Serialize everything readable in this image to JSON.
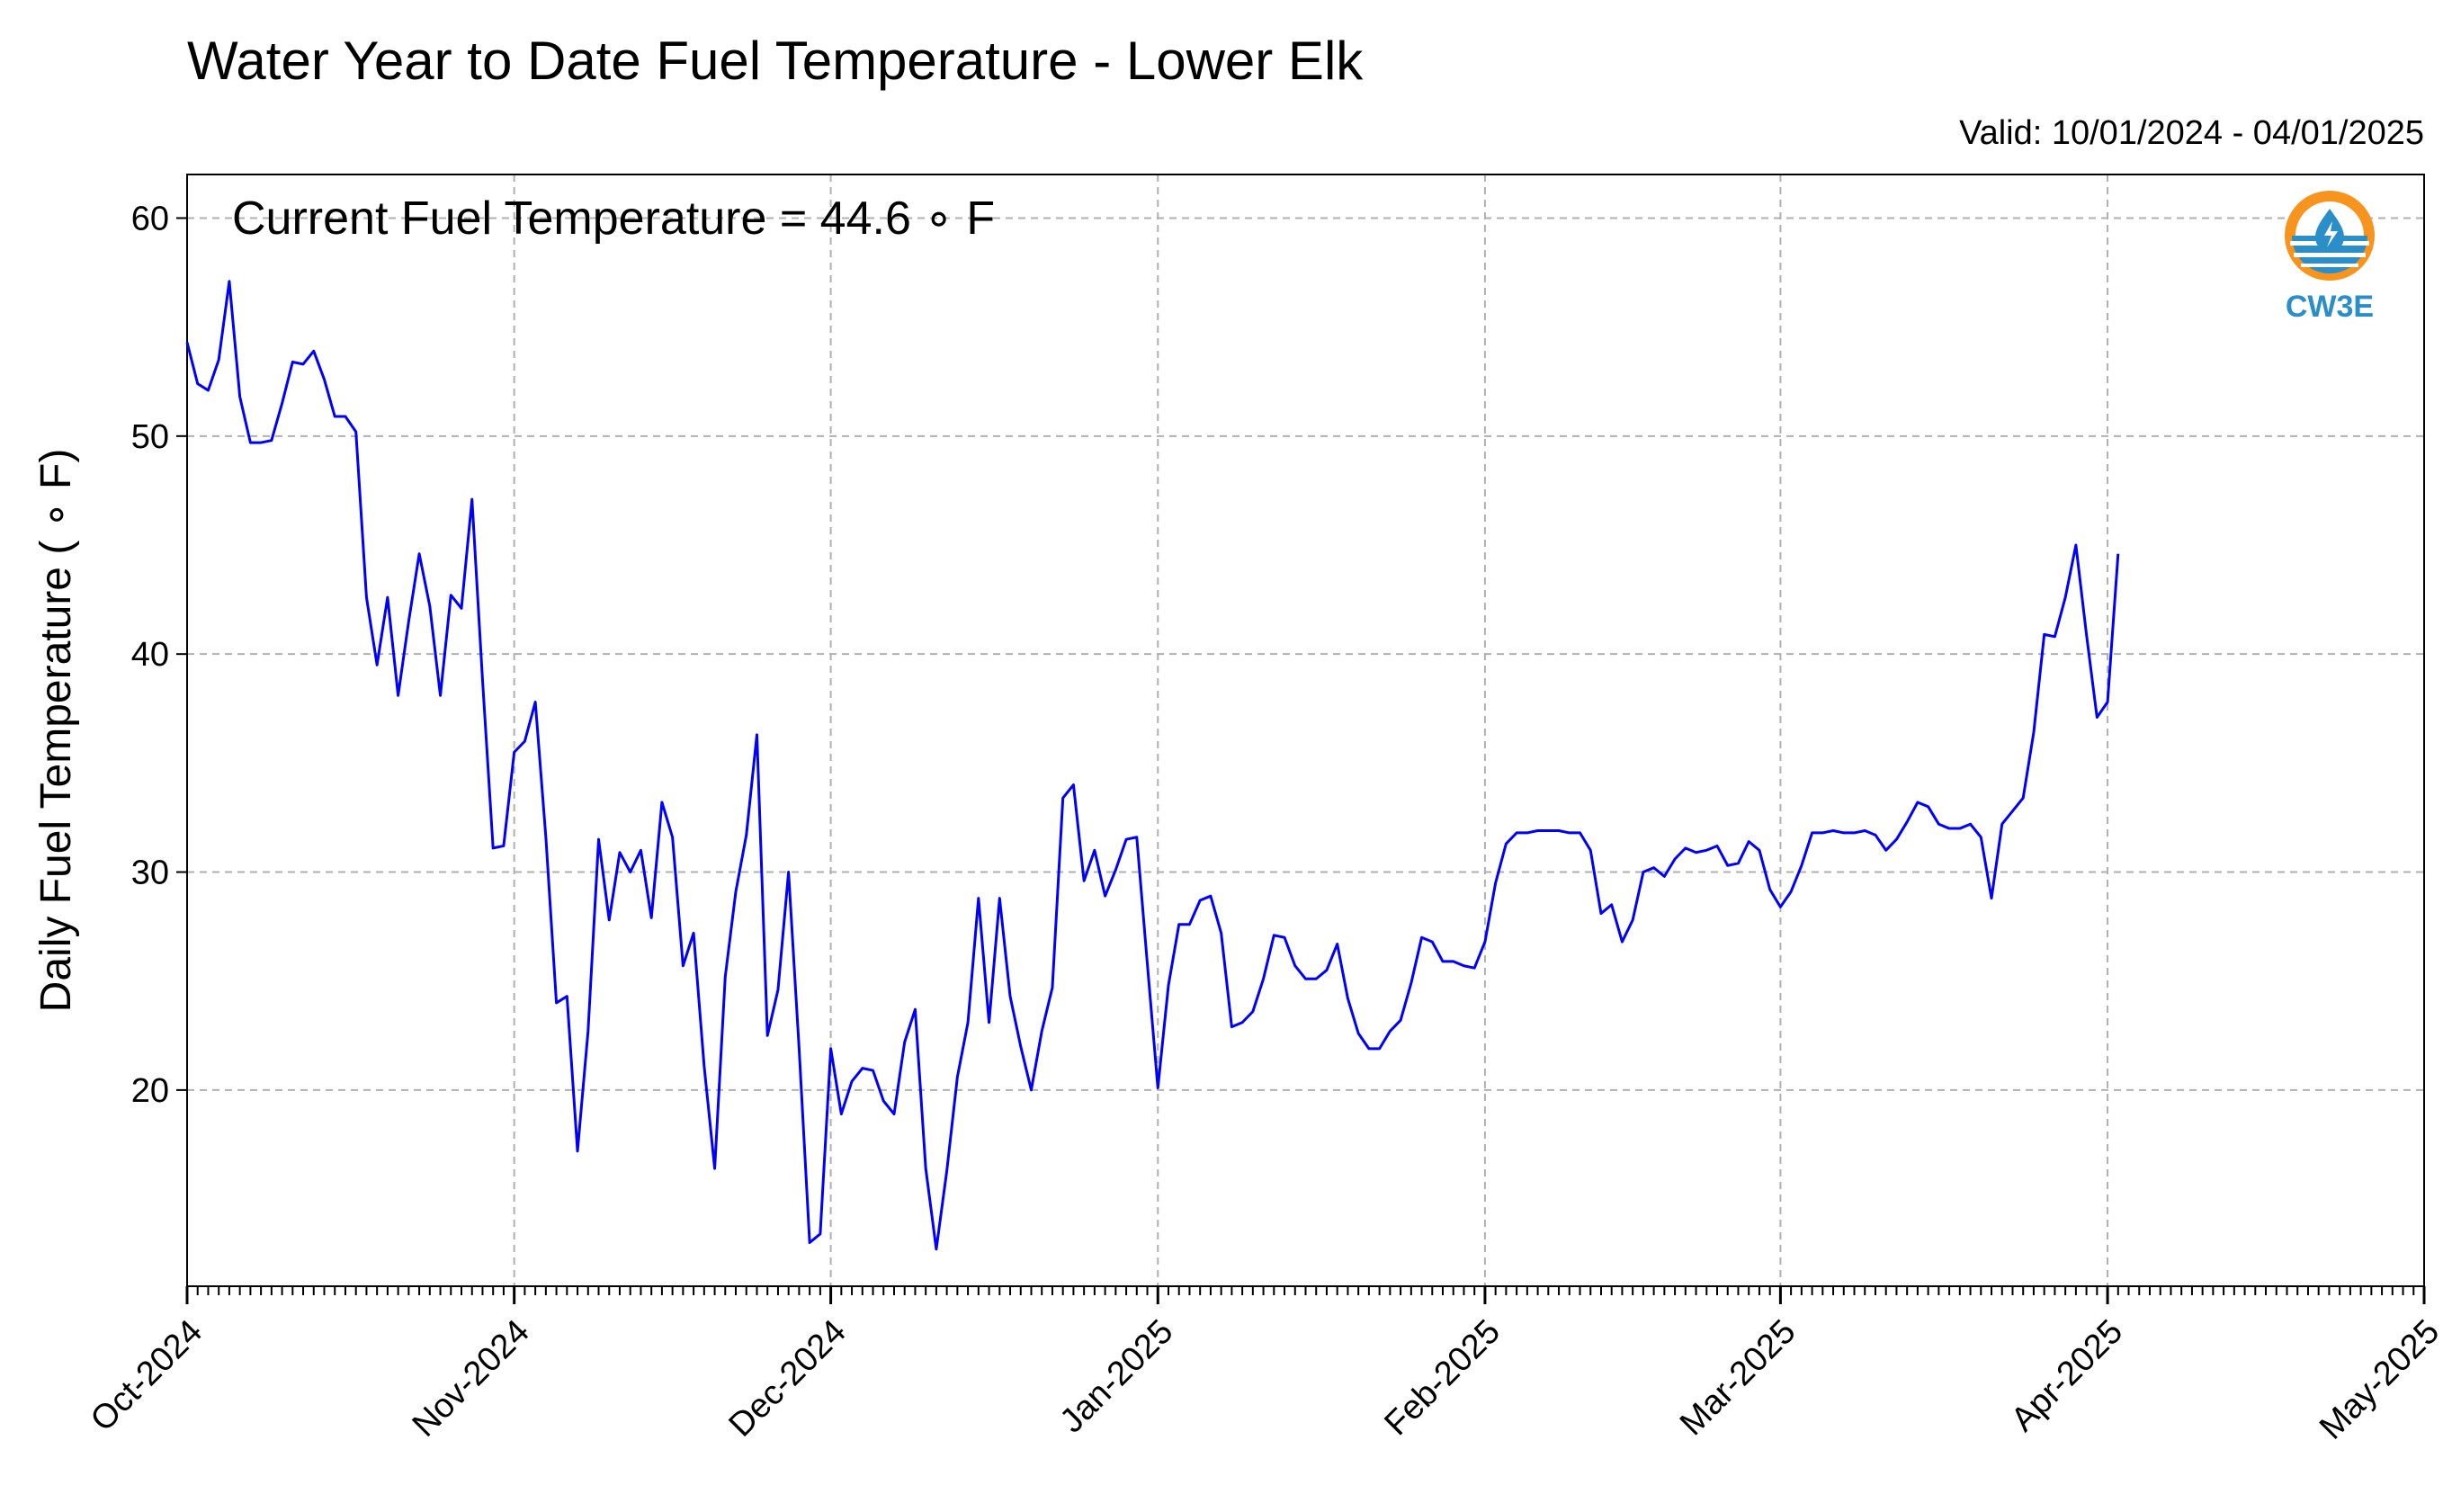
{
  "chart_data": {
    "type": "line",
    "title": "Water Year to Date Fuel Temperature - Lower Elk",
    "subtitle": "Valid: 10/01/2024 - 04/01/2025",
    "ylabel": "Daily Fuel Temperature ( ∘ F)",
    "xlabel": "",
    "annotation": "Current Fuel Temperature = 44.6  ∘ F",
    "ylim": [
      11,
      62
    ],
    "yticks": [
      20,
      30,
      40,
      50,
      60
    ],
    "xlim": [
      "2024-10-01",
      "2025-05-01"
    ],
    "xticks": [
      {
        "date": "2024-10-01",
        "label": "Oct-2024"
      },
      {
        "date": "2024-11-01",
        "label": "Nov-2024"
      },
      {
        "date": "2024-12-01",
        "label": "Dec-2024"
      },
      {
        "date": "2025-01-01",
        "label": "Jan-2025"
      },
      {
        "date": "2025-02-01",
        "label": "Feb-2025"
      },
      {
        "date": "2025-03-01",
        "label": "Mar-2025"
      },
      {
        "date": "2025-04-01",
        "label": "Apr-2025"
      },
      {
        "date": "2025-05-01",
        "label": "May-2025"
      }
    ],
    "grid": true,
    "line_color": "#0000ff",
    "start_date": "2024-10-01",
    "series": [
      {
        "values": [
          54.3,
          52.4,
          52.1,
          53.5,
          57.1,
          51.8,
          49.7,
          49.7,
          49.8,
          51.5,
          53.4,
          53.3,
          53.9,
          52.6,
          50.9,
          50.9,
          50.2,
          42.6,
          39.5,
          42.6,
          38.1,
          41.5,
          44.6,
          42.2,
          38.1,
          42.7,
          42.1,
          47.1,
          38.8,
          31.1,
          31.2,
          35.5,
          36.0,
          37.8,
          31.6,
          24.0,
          24.3,
          17.2,
          22.7,
          31.5,
          27.8,
          30.9,
          30.0,
          31.0,
          27.9,
          33.2,
          31.6,
          25.7,
          27.2,
          21.1,
          16.4,
          25.2,
          29.1,
          31.7,
          36.3,
          22.5,
          24.6,
          30.0,
          21.9,
          13.0,
          13.4,
          21.9,
          18.9,
          20.4,
          21.0,
          20.9,
          19.5,
          18.9,
          22.2,
          23.7,
          16.4,
          12.7,
          16.3,
          20.6,
          23.1,
          28.8,
          23.1,
          28.8,
          24.3,
          22.0,
          20.0,
          22.7,
          24.7,
          33.4,
          34.0,
          29.6,
          31.0,
          28.9,
          30.1,
          31.5,
          31.6,
          25.8,
          20.1,
          24.8,
          27.6,
          27.6,
          28.7,
          28.9,
          27.2,
          22.9,
          23.1,
          23.6,
          25.1,
          27.1,
          27.0,
          25.7,
          25.1,
          25.1,
          25.5,
          26.7,
          24.2,
          22.6,
          21.9,
          21.9,
          22.7,
          23.2,
          24.9,
          27.0,
          26.8,
          25.9,
          25.9,
          25.7,
          25.6,
          26.8,
          29.5,
          31.3,
          31.8,
          31.8,
          31.9,
          31.9,
          31.9,
          31.8,
          31.8,
          31.0,
          28.1,
          28.5,
          26.8,
          27.8,
          30.0,
          30.2,
          29.8,
          30.6,
          31.1,
          30.9,
          31.0,
          31.2,
          30.3,
          30.4,
          31.4,
          31.0,
          29.2,
          28.4,
          29.1,
          30.3,
          31.8,
          31.8,
          31.9,
          31.8,
          31.8,
          31.9,
          31.7,
          31.0,
          31.5,
          32.3,
          33.2,
          33.0,
          32.2,
          32.0,
          32.0,
          32.2,
          31.6,
          28.8,
          32.2,
          32.8,
          33.4,
          36.4,
          40.9,
          40.8,
          42.6,
          45.0,
          40.9,
          37.1,
          37.8,
          44.6
        ]
      }
    ]
  },
  "logo": {
    "text": "CW3E",
    "icon": "cw3e-logo-icon",
    "orange": "#f7941d",
    "blue": "#2a8ec8"
  }
}
